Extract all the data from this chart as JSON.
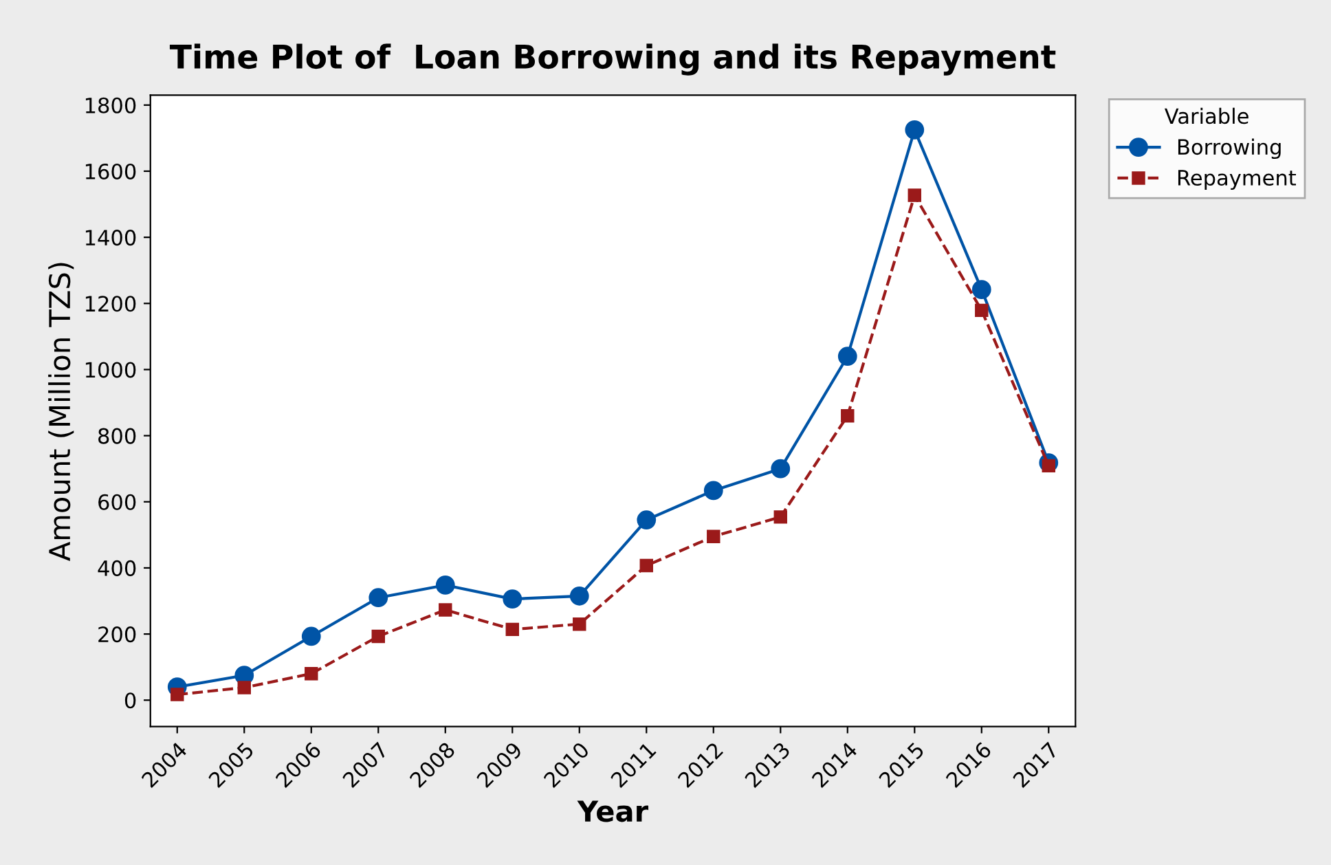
{
  "chart_data": {
    "type": "line",
    "title": "Time Plot of  Loan Borrowing and its Repayment",
    "xlabel": "Year",
    "ylabel": "Amount (Million TZS)",
    "legend_title": "Variable",
    "categories": [
      "2004",
      "2005",
      "2006",
      "2007",
      "2008",
      "2009",
      "2010",
      "2011",
      "2012",
      "2013",
      "2014",
      "2015",
      "2016",
      "2017"
    ],
    "series": [
      {
        "name": "Borrowing",
        "color": "#0054a6",
        "marker": "circle",
        "line_style": "solid",
        "values": [
          40,
          75,
          193,
          310,
          348,
          306,
          315,
          545,
          634,
          700,
          1040,
          1725,
          1242,
          718
        ]
      },
      {
        "name": "Repayment",
        "color": "#9b1a1a",
        "marker": "square",
        "line_style": "dashed",
        "values": [
          17,
          38,
          80,
          193,
          273,
          214,
          230,
          407,
          495,
          554,
          860,
          1527,
          1179,
          709
        ]
      }
    ],
    "ylim": [
      -80,
      1830
    ],
    "yticks": [
      0,
      200,
      400,
      600,
      800,
      1000,
      1200,
      1400,
      1600,
      1800
    ],
    "grid": false,
    "legend": "top right"
  }
}
